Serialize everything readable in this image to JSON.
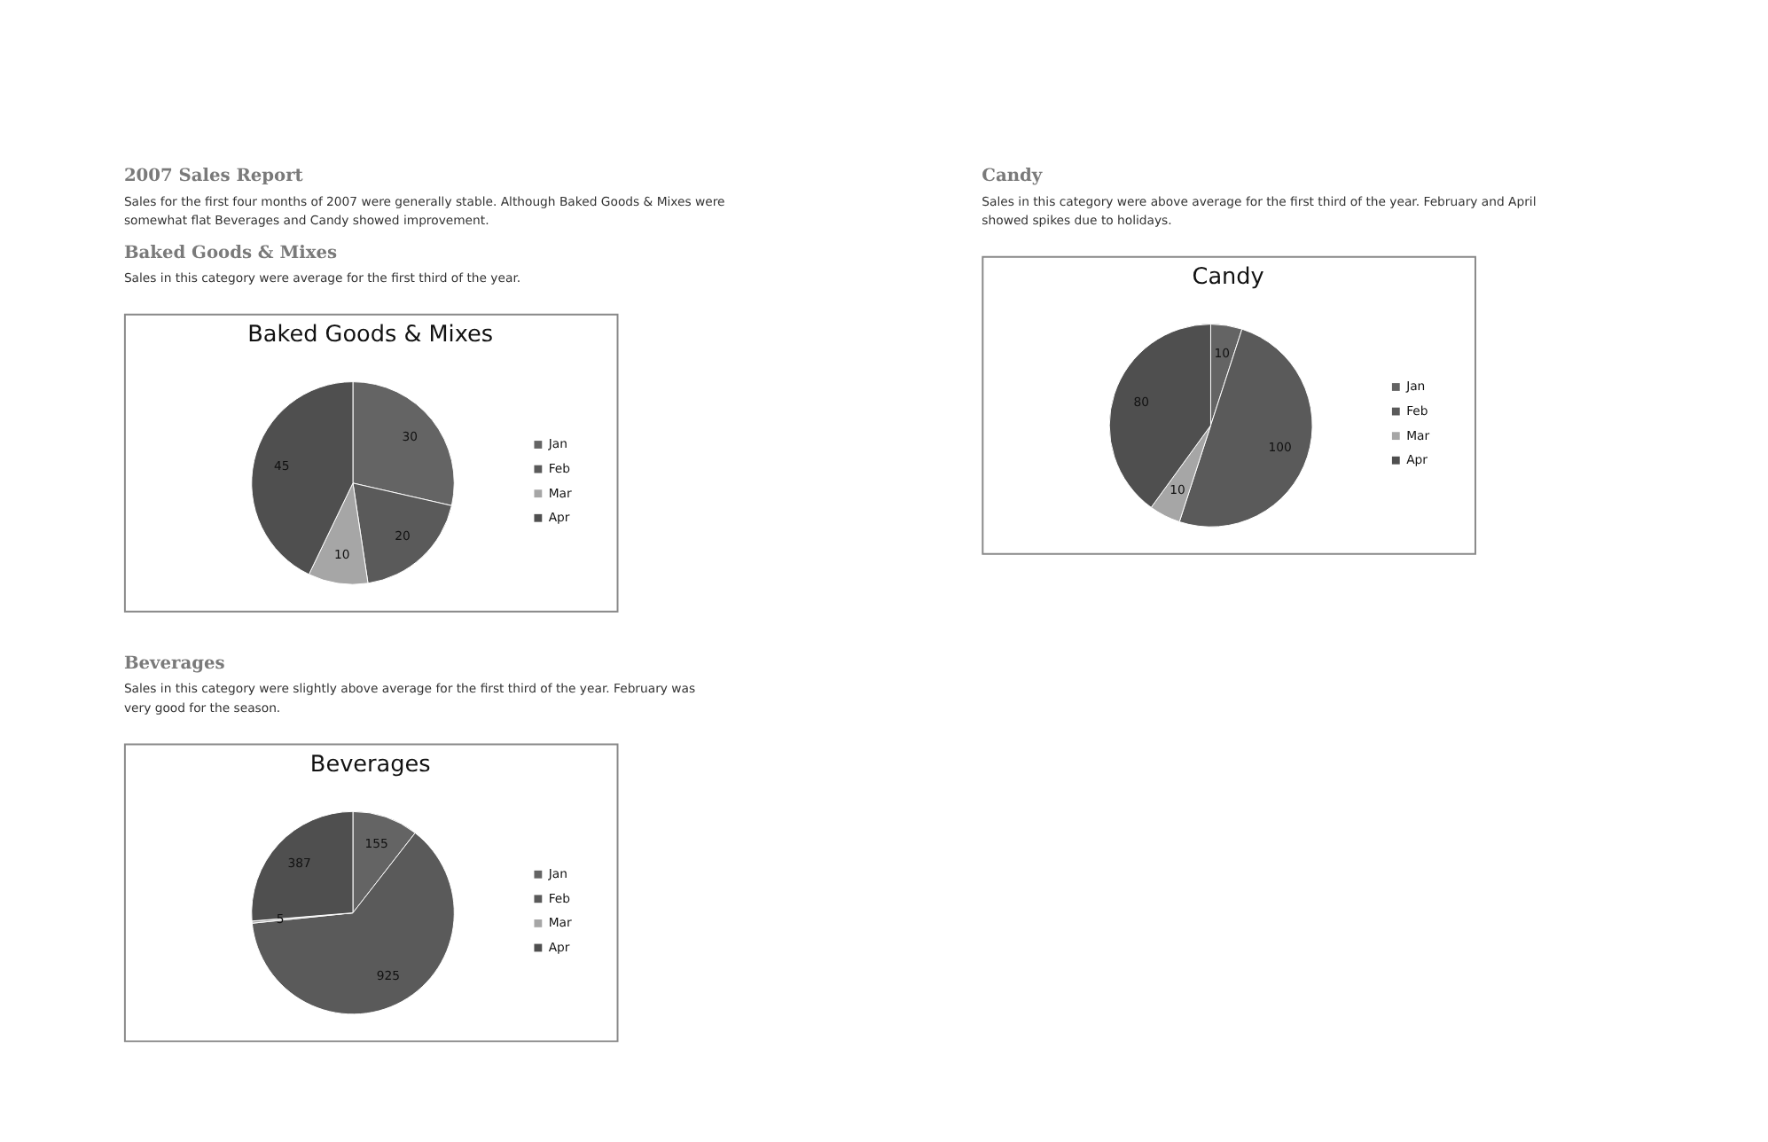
{
  "chart_data": [
    {
      "type": "pie",
      "title": "Baked Goods & Mixes",
      "categories": [
        "Jan",
        "Feb",
        "Mar",
        "Apr"
      ],
      "values": [
        30,
        20,
        10,
        45
      ],
      "colors": [
        "#646464",
        "#5a5a5a",
        "#a6a6a6",
        "#4f4f4f"
      ],
      "data_labels": true,
      "legend": "right",
      "annotations": [
        "2007 Sales Report",
        "Sales for the first four months of 2007 were generally stable.  Although Baked Goods & Mixes were somewhat flat Beverages and Candy showed improvement.",
        "Baked Goods & Mixes",
        "Sales in this category were average for the first third of the year."
      ]
    },
    {
      "type": "pie",
      "title": "Beverages",
      "categories": [
        "Jan",
        "Feb",
        "Mar",
        "Apr"
      ],
      "values": [
        155,
        925,
        5,
        387
      ],
      "colors": [
        "#646464",
        "#5a5a5a",
        "#a6a6a6",
        "#4f4f4f"
      ],
      "data_labels": true,
      "legend": "right",
      "annotations": [
        "Beverages",
        "Sales in this category were slightly above average for the first third of the year.  February was very good for the season."
      ]
    },
    {
      "type": "pie",
      "title": "Candy",
      "categories": [
        "Jan",
        "Feb",
        "Mar",
        "Apr"
      ],
      "values": [
        10,
        100,
        10,
        80
      ],
      "colors": [
        "#646464",
        "#5a5a5a",
        "#a6a6a6",
        "#4f4f4f"
      ],
      "data_labels": true,
      "legend": "right",
      "annotations": [
        "Candy",
        "Sales in this category were above average for the first third of the year.  February and April showed spikes due to holidays."
      ]
    }
  ]
}
